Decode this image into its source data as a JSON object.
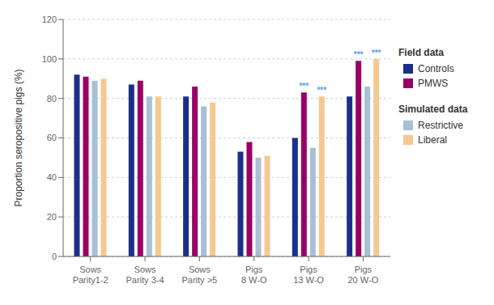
{
  "chart_data": {
    "type": "bar",
    "categories": [
      "Sows\nParity1-2",
      "Sows\nParity 3-4",
      "Sows\nParity >5",
      "Pigs\n8 W-O",
      "Pigs\n13 W-O",
      "Pigs\n20 W-O"
    ],
    "series": [
      {
        "name": "Controls",
        "color": "#1a2f8a",
        "values": [
          92,
          87,
          81,
          53,
          60,
          81
        ]
      },
      {
        "name": "PMWS",
        "color": "#990066",
        "values": [
          91,
          89,
          86,
          58,
          83,
          99
        ]
      },
      {
        "name": "Restrictive",
        "color": "#a8bfd4",
        "values": [
          89,
          81,
          76,
          50,
          55,
          86
        ]
      },
      {
        "name": "Liberal",
        "color": "#f5c892",
        "values": [
          90,
          81,
          78,
          51,
          81,
          100
        ]
      }
    ],
    "ylabel": "Proportion seropositive pigs (%)",
    "ylim": [
      0,
      120
    ],
    "yticks": [
      0,
      20,
      40,
      60,
      80,
      100,
      120
    ],
    "grid": true,
    "legend": "right",
    "legend_groups": [
      {
        "title": "Field data",
        "series": [
          "Controls",
          "PMWS"
        ]
      },
      {
        "title": "Simulated data",
        "series": [
          "Restrictive",
          "Liberal"
        ]
      }
    ],
    "annotations": [
      {
        "text": "***",
        "series": "PMWS",
        "category": "Pigs\n13 W-O",
        "color": "#5599ff"
      },
      {
        "text": "***",
        "series": "Liberal",
        "category": "Pigs\n13 W-O",
        "color": "#5599ff"
      },
      {
        "text": "***",
        "series": "PMWS",
        "category": "Pigs\n20 W-O",
        "color": "#5599ff"
      },
      {
        "text": "***",
        "series": "Liberal",
        "category": "Pigs\n20 W-O",
        "color": "#5599ff"
      }
    ]
  }
}
